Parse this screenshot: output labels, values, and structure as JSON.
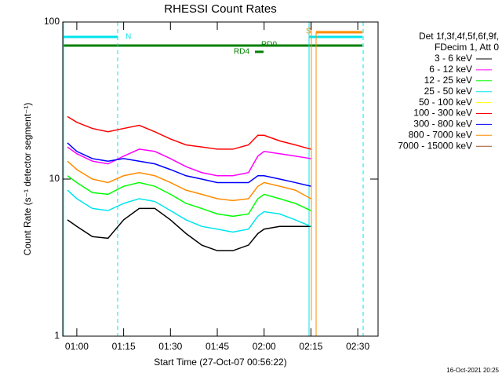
{
  "chart_data": {
    "type": "line",
    "title": "RHESSI Count Rates",
    "xlabel": "Start Time (27-Oct-07 00:56:22)",
    "ylabel": "Count Rate (s⁻¹ detector segment⁻¹)",
    "legend_header": [
      "Det 1f,3f,4f,5f,6f,9f,",
      "FDecim 1, Att 0"
    ],
    "footer": "16-Oct-2021 20:25",
    "annotations": [
      "N",
      "S",
      "RD0",
      "RD4"
    ],
    "log_y": true,
    "xlim": [
      55.5,
      156.5
    ],
    "ylim": [
      1,
      100
    ],
    "xticks": [
      {
        "value": 60,
        "label": "01:00"
      },
      {
        "value": 75,
        "label": "01:15"
      },
      {
        "value": 90,
        "label": "01:30"
      },
      {
        "value": 105,
        "label": "01:45"
      },
      {
        "value": 120,
        "label": "02:00"
      },
      {
        "value": 135,
        "label": "02:15"
      },
      {
        "value": 150,
        "label": "02:30"
      }
    ],
    "yticks": [
      1,
      10,
      100
    ],
    "x": [
      57,
      60,
      65,
      70,
      75,
      80,
      85,
      90,
      95,
      100,
      105,
      110,
      115,
      118,
      120,
      125,
      130,
      135
    ],
    "series": [
      {
        "name": "3 - 6 keV",
        "color": "#000000",
        "values": [
          5.5,
          5,
          4.3,
          4.2,
          5.5,
          6.5,
          6.5,
          5.5,
          4.5,
          3.8,
          3.5,
          3.5,
          3.8,
          4.5,
          4.8,
          5,
          5,
          5
        ]
      },
      {
        "name": "6 - 12 keV",
        "color": "#ff00ff",
        "values": [
          16,
          14.5,
          13,
          12.5,
          14,
          15.5,
          15,
          13.5,
          12,
          11,
          10.5,
          10.5,
          11,
          14,
          15,
          14.5,
          14,
          13.5
        ]
      },
      {
        "name": "12 - 25 keV",
        "color": "#00ff00",
        "values": [
          10.5,
          9.5,
          8.2,
          8,
          9,
          9.5,
          9,
          8,
          7,
          6.5,
          6,
          5.8,
          6,
          7.5,
          8,
          7.5,
          7,
          6.3
        ]
      },
      {
        "name": "25 - 50 keV",
        "color": "#00e5ee",
        "values": [
          8.5,
          7.5,
          6.5,
          6.3,
          7,
          7.5,
          7.2,
          6.3,
          5.5,
          5,
          4.8,
          4.6,
          4.8,
          5.8,
          6.2,
          6,
          5.5,
          5
        ]
      },
      {
        "name": "50 - 100 keV",
        "color": "#ffff00",
        "values": [
          null,
          null,
          null,
          null,
          null,
          null,
          null,
          null,
          null,
          null,
          null,
          null,
          null,
          null,
          null,
          null,
          null,
          null
        ]
      },
      {
        "name": "100 - 300 keV",
        "color": "#ff0000",
        "values": [
          25,
          23,
          21,
          20,
          21,
          22,
          20,
          18,
          16.5,
          16,
          15.5,
          15.5,
          16.5,
          19,
          19,
          17.5,
          16.5,
          15.5
        ]
      },
      {
        "name": "300 - 800 keV",
        "color": "#0000ff",
        "values": [
          17,
          15,
          13.5,
          13,
          13.5,
          13,
          12.5,
          11.5,
          10.5,
          10,
          9.5,
          9.5,
          9.5,
          10.5,
          10.5,
          10,
          9.5,
          9
        ]
      },
      {
        "name": "800 - 7000 keV",
        "color": "#ff8c00",
        "values": [
          13,
          11.5,
          10,
          9.5,
          10.5,
          11,
          10.5,
          9.5,
          8.5,
          8,
          7.5,
          7.3,
          7.5,
          9,
          9.5,
          9,
          8.5,
          7.5
        ]
      },
      {
        "name": "7000 - 15000 keV",
        "color": "#a0522d",
        "values": [
          null,
          null,
          null,
          null,
          null,
          null,
          null,
          null,
          null,
          null,
          null,
          null,
          null,
          null,
          null,
          null,
          null,
          null
        ]
      }
    ]
  }
}
